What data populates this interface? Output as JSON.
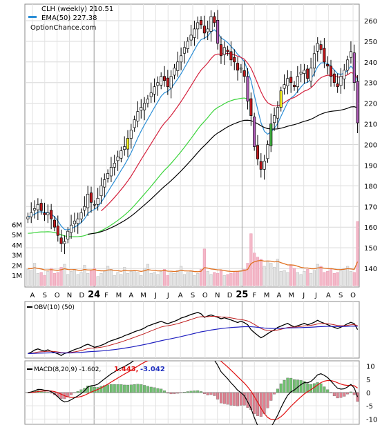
{
  "legend": {
    "ticker_label": "CLH (weekly) 210.51",
    "ema_label": "EMA(50) 227.38",
    "site": "OptionChance.com"
  },
  "obv_label": "OBV(10) (50)",
  "macd": {
    "label": "MACD(8,20,9) -1.602,",
    "macd_value": "1.443,",
    "signal_value": "-3.042"
  },
  "colors": {
    "up_candle": "#ffffff",
    "down_candle": "#c0181c",
    "gap_up_candle": "#f4ef1e",
    "gap_down_candle": "#b05ab8",
    "reversal_up_candle": "#3caa3c",
    "ema_fast": "#2b8ed6",
    "ema_mid": "#d4203c",
    "ema_slow": "#3ad43a",
    "ema_long": "#000000",
    "volume_avg": "#e07020",
    "obv_line": "#000000",
    "obv_signal": "#2020c0",
    "obv_ma": "#c02020",
    "macd_line": "#000000",
    "macd_signal": "#e01010",
    "hist_up": "#70c070",
    "hist_down": "#e08090"
  },
  "chart_data": [
    {
      "type": "candlestick",
      "title": "CLH (weekly)",
      "last_close": 210.51,
      "y_ticks": [
        140,
        150,
        160,
        170,
        180,
        190,
        200,
        210,
        220,
        230,
        240,
        250,
        260
      ],
      "ylim": [
        131,
        268
      ],
      "x_ticks": [
        "A",
        "S",
        "O",
        "N",
        "D",
        "24",
        "F",
        "M",
        "A",
        "M",
        "J",
        "J",
        "A",
        "S",
        "O",
        "N",
        "D",
        "25",
        "F",
        "M",
        "A",
        "M",
        "J",
        "J",
        "A",
        "S",
        "O"
      ],
      "grid": true,
      "series_weekly_close": [
        165,
        167,
        169,
        171,
        168,
        166,
        167,
        164,
        160,
        156,
        152,
        153,
        158,
        161,
        163,
        164,
        167,
        170,
        176,
        172,
        171,
        174,
        180,
        183,
        186,
        189,
        191,
        194,
        197,
        199,
        203,
        207,
        212,
        216,
        218,
        220,
        222,
        225,
        228,
        230,
        233,
        231,
        228,
        233,
        237,
        240,
        243,
        247,
        250,
        253,
        256,
        259,
        258,
        254,
        256,
        262,
        259,
        249,
        243,
        247,
        245,
        241,
        240,
        236,
        237,
        233,
        221,
        214,
        199,
        193,
        188,
        192,
        200,
        210,
        214,
        218,
        226,
        229,
        232,
        230,
        228,
        233,
        235,
        236,
        232,
        237,
        244,
        249,
        246,
        240,
        238,
        233,
        230,
        228,
        233,
        236,
        241,
        245,
        230,
        210.51
      ],
      "ema_lines": [
        {
          "name": "EMA(50)",
          "value": 227.38
        }
      ]
    },
    {
      "type": "bar",
      "title": "Volume",
      "y_ticks": [
        "1M",
        "2M",
        "3M",
        "4M",
        "5M",
        "6M"
      ],
      "values_millions": [
        1.6,
        1.5,
        2.2,
        1.2,
        1.3,
        1.0,
        1.4,
        1.7,
        1.2,
        1.3,
        1.8,
        2.1,
        1.1,
        1.4,
        1.6,
        1.1,
        1.3,
        2.0,
        1.2,
        1.5,
        1.7,
        0.9,
        1.2,
        1.4,
        1.9,
        1.6,
        1.0,
        1.3,
        1.1,
        1.8,
        1.2,
        1.4,
        1.5,
        1.3,
        1.0,
        1.7,
        2.1,
        1.2,
        1.3,
        1.1,
        1.4,
        1.6,
        1.0,
        1.3,
        1.2,
        1.5,
        1.9,
        1.1,
        1.3,
        1.4,
        1.0,
        1.2,
        1.6,
        3.6,
        1.4,
        1.1,
        1.3,
        1.2,
        1.5,
        1.0,
        1.1,
        1.2,
        1.3,
        1.4,
        1.5,
        1.6,
        2.2,
        5.1,
        3.2,
        2.8,
        2.6,
        1.9,
        2.4,
        2.2,
        1.8,
        2.6,
        1.4,
        1.5,
        1.3,
        2.0,
        1.7,
        1.3,
        1.1,
        1.4,
        1.6,
        1.2,
        1.5,
        2.1,
        1.9,
        1.3,
        1.4,
        1.6,
        1.2,
        1.3,
        1.5,
        1.7,
        1.9,
        1.4,
        1.3,
        6.3
      ]
    },
    {
      "type": "line",
      "title": "OBV(10) (50)"
    },
    {
      "type": "line",
      "title": "MACD(8,20,9)",
      "y_ticks": [
        10,
        5,
        0,
        -5,
        -10
      ],
      "ylim": [
        -12,
        12
      ],
      "macd": -1.602,
      "macd_value": 1.443,
      "signal_value": -3.042
    }
  ]
}
